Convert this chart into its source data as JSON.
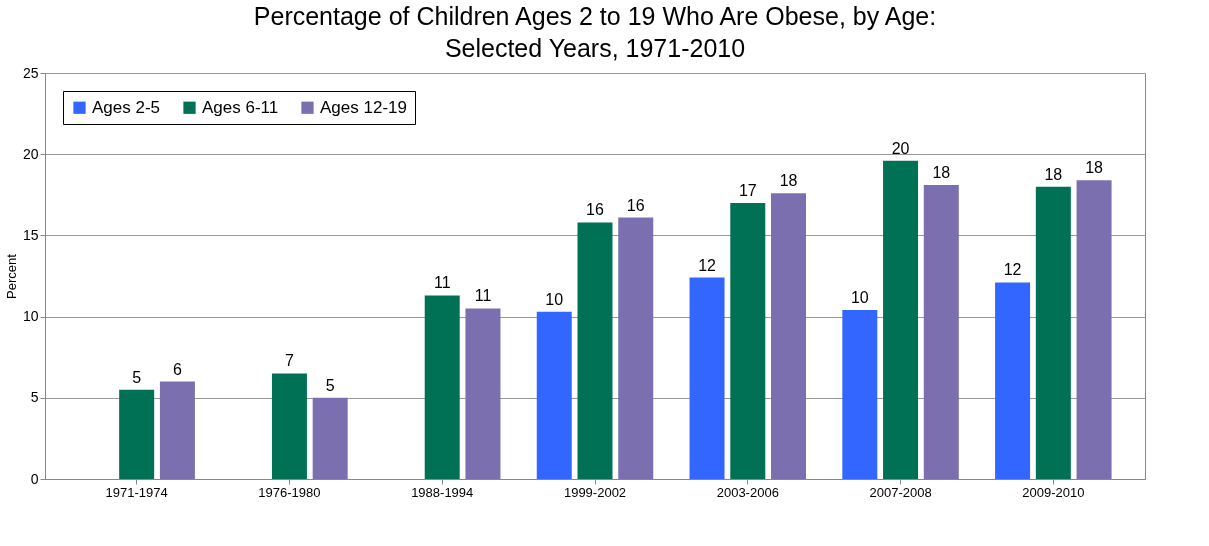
{
  "chart_data": {
    "type": "bar",
    "title": "Percentage of Children Ages 2 to 19 Who Are Obese, by Age:\nSelected Years, 1971-2010",
    "ylabel": "Percent",
    "categories": [
      "1971-1974",
      "1976-1980",
      "1988-1994",
      "1999-2002",
      "2003-2006",
      "2007-2008",
      "2009-2010"
    ],
    "series": [
      {
        "name": "Ages 2-5",
        "color": "#3366ff",
        "values": [
          null,
          null,
          null,
          10.3,
          12.4,
          10.4,
          12.1
        ],
        "value_labels": [
          null,
          null,
          null,
          "10",
          "12",
          "10",
          "12"
        ]
      },
      {
        "name": "Ages 6-11",
        "color": "#007155",
        "values": [
          5.5,
          6.5,
          11.3,
          15.8,
          17.0,
          19.6,
          18.0
        ],
        "value_labels": [
          "5",
          "7",
          "11",
          "16",
          "17",
          "20",
          "18"
        ]
      },
      {
        "name": "Ages 12-19",
        "color": "#7b6fb0",
        "values": [
          6.0,
          5.0,
          10.5,
          16.1,
          17.6,
          18.1,
          18.4
        ],
        "value_labels": [
          "6",
          "5",
          "11",
          "16",
          "18",
          "18",
          "18"
        ]
      }
    ],
    "ylim": [
      0,
      25
    ],
    "yticks": [
      0,
      5,
      10,
      15,
      20,
      25
    ],
    "grid": "y",
    "legend": "top left"
  }
}
